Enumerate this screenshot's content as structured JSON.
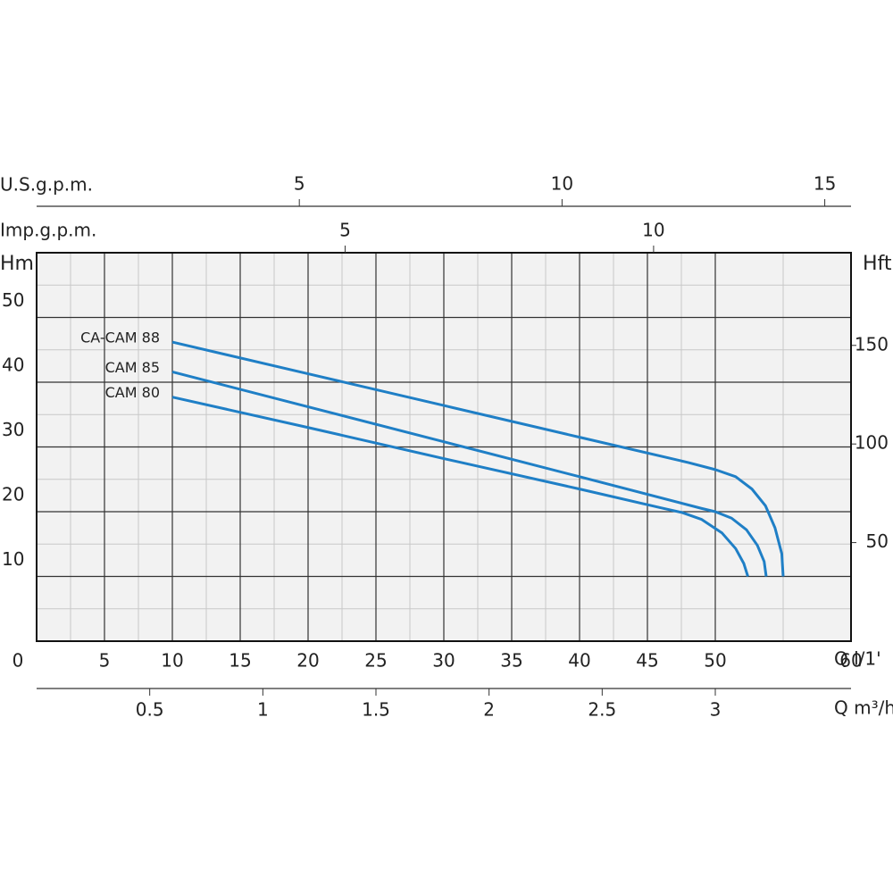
{
  "chart_data": {
    "type": "line",
    "xlabel": "Q l/1'",
    "ylabel": "Hm",
    "y2label": "Hft",
    "xlim": [
      0,
      60
    ],
    "xticks": [
      0,
      5,
      10,
      15,
      20,
      25,
      30,
      35,
      40,
      45,
      50,
      60
    ],
    "ylim": [
      0,
      60
    ],
    "yticks": [
      10,
      20,
      30,
      40,
      50
    ],
    "y2lim": [
      0,
      197
    ],
    "y2ticks": [
      50,
      100,
      150
    ],
    "grid": true,
    "minor_grid": true,
    "top_axes": [
      {
        "label": "U.S.g.p.m.",
        "lim": [
          0,
          15.5
        ],
        "ticks": [
          5,
          10,
          15
        ]
      },
      {
        "label": "Imp.g.p.m.",
        "lim": [
          0,
          13.2
        ],
        "ticks": [
          5,
          10
        ]
      }
    ],
    "bottom_axis2": {
      "label": "Q m³/h",
      "lim": [
        0,
        3.6
      ],
      "ticks": [
        0.5,
        1,
        1.5,
        2,
        2.5,
        3
      ]
    },
    "series": [
      {
        "name": "CA-CAM 88",
        "color": "#1f7fc6",
        "x": [
          10,
          20,
          30,
          40,
          48,
          50,
          51.5,
          52.7,
          53.7,
          54.4,
          54.9,
          55
        ],
        "values": [
          46.2,
          41.3,
          36.4,
          31.5,
          27.6,
          26.5,
          25.4,
          23.5,
          20.9,
          17.5,
          13.5,
          10
        ]
      },
      {
        "name": "CAM 85",
        "color": "#1f7fc6",
        "x": [
          10,
          20,
          30,
          40,
          49,
          50,
          51.2,
          52.3,
          53.1,
          53.6,
          53.75
        ],
        "values": [
          41.6,
          36.2,
          30.8,
          25.4,
          20.5,
          20,
          19,
          17.2,
          14.8,
          12.3,
          10
        ]
      },
      {
        "name": "CAM 80",
        "color": "#1f7fc6",
        "x": [
          10,
          20,
          30,
          40,
          46,
          47.5,
          49,
          50.5,
          51.5,
          52.1,
          52.4
        ],
        "values": [
          37.7,
          33,
          28.2,
          23.5,
          20.6,
          19.9,
          18.8,
          16.7,
          14.3,
          12,
          10
        ]
      }
    ]
  }
}
